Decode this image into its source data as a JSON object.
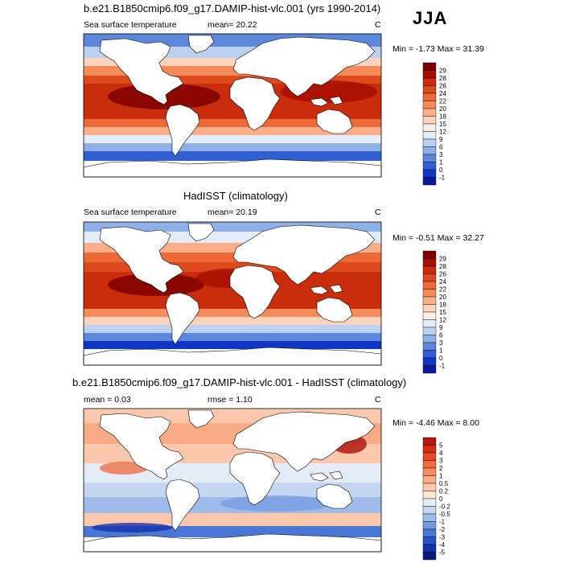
{
  "season": "JJA",
  "panels": [
    {
      "title": "b.e21.B1850cmip6.f09_g17.DAMIP-hist-vlc.001 (yrs 1990-2014)",
      "variable": "Sea surface temperature",
      "stat1": "mean=  20.22",
      "stat2": "",
      "units": "C",
      "minmax": "Min =  -1.73 Max =  31.39",
      "colorbar": {
        "type": "sst",
        "labels": [
          "29",
          "28",
          "26",
          "24",
          "22",
          "20",
          "18",
          "15",
          "12",
          "9",
          "6",
          "3",
          "1",
          "0",
          "-1"
        ],
        "colors": [
          "#7f0000",
          "#a80e00",
          "#c92d0b",
          "#dd4a1c",
          "#ec6a37",
          "#f58b58",
          "#fbae87",
          "#fdd3bb",
          "#fbeee6",
          "#e3ecf8",
          "#bcd1ef",
          "#8fb0e6",
          "#5d87da",
          "#2f5fd1",
          "#1036c4",
          "#0a1a9a"
        ]
      }
    },
    {
      "title": "HadISST (climatology)",
      "variable": "Sea surface temperature",
      "stat1": "mean=  20.19",
      "stat2": "",
      "units": "C",
      "minmax": "Min =  -0.51 Max =  32.27",
      "colorbar": {
        "type": "sst",
        "labels": [
          "29",
          "28",
          "26",
          "24",
          "22",
          "20",
          "18",
          "15",
          "12",
          "9",
          "6",
          "3",
          "1",
          "0",
          "-1"
        ],
        "colors": [
          "#7f0000",
          "#a80e00",
          "#c92d0b",
          "#dd4a1c",
          "#ec6a37",
          "#f58b58",
          "#fbae87",
          "#fdd3bb",
          "#fbeee6",
          "#e3ecf8",
          "#bcd1ef",
          "#8fb0e6",
          "#5d87da",
          "#2f5fd1",
          "#1036c4",
          "#0a1a9a"
        ]
      }
    },
    {
      "title": "b.e21.B1850cmip6.f09_g17.DAMIP-hist-vlc.001 - HadISST (climatology)",
      "variable": "",
      "stat1": "mean =  0.03",
      "stat2": "rmse =  1.10",
      "units": "C",
      "minmax": "Min =  -4.46 Max =   8.00",
      "colorbar": {
        "type": "diff",
        "labels": [
          "5",
          "4",
          "3",
          "2",
          "1",
          "0.5",
          "0.2",
          "0",
          "-0.2",
          "-0.5",
          "-1",
          "-2",
          "-3",
          "-4",
          "-5"
        ],
        "colors": [
          "#b2180f",
          "#d22d13",
          "#e64a25",
          "#f06a3e",
          "#f68b60",
          "#f9ab86",
          "#fcc8ad",
          "#fde5d8",
          "#e4ecf8",
          "#c5d6f1",
          "#9fbbea",
          "#7399e0",
          "#4a76d6",
          "#2a52c8",
          "#1433ad",
          "#0a1b7d"
        ]
      }
    }
  ]
}
